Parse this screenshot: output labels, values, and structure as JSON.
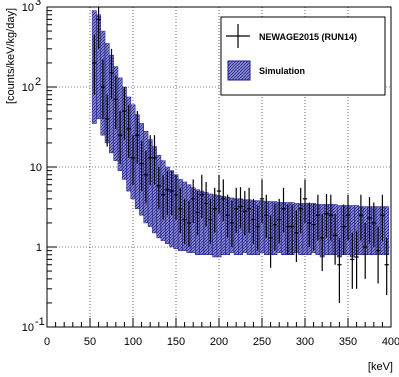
{
  "colors": {
    "band_fill": "#8080c8",
    "band_stroke": "#1a1a8c",
    "data": "#000000",
    "grid": "#000000"
  },
  "chart_data": {
    "type": "bar",
    "xlabel": "[keV]",
    "ylabel": "[counts/keV/kg/day]",
    "xlim": [
      0,
      400
    ],
    "ylim": [
      0.1,
      1000
    ],
    "yscale": "log",
    "grid": true,
    "legend_position": "top-right",
    "x_ticks": [
      0,
      50,
      100,
      150,
      200,
      250,
      300,
      350,
      400
    ],
    "x_tick_labels": [
      "0",
      "50",
      "100",
      "150",
      "200",
      "250",
      "300",
      "350",
      "400"
    ],
    "y_ticks": [
      0.1,
      1,
      10,
      100,
      1000
    ],
    "y_tick_labels": [
      {
        "base": "10",
        "exp": "-1"
      },
      {
        "base": "1",
        "exp": ""
      },
      {
        "base": "10",
        "exp": ""
      },
      {
        "base": "10",
        "exp": "2"
      },
      {
        "base": "10",
        "exp": "3"
      }
    ],
    "series": [
      {
        "name": "NEWAGE2015 (RUN14)",
        "kind": "data-errorbars",
        "bin_width": 5,
        "x": [
          55,
          60,
          65,
          70,
          75,
          80,
          85,
          90,
          95,
          100,
          105,
          110,
          115,
          120,
          125,
          130,
          135,
          140,
          145,
          150,
          155,
          160,
          165,
          170,
          175,
          180,
          185,
          190,
          195,
          200,
          205,
          210,
          215,
          220,
          225,
          230,
          235,
          240,
          245,
          250,
          255,
          260,
          265,
          270,
          275,
          280,
          285,
          290,
          295,
          300,
          305,
          310,
          315,
          320,
          325,
          330,
          335,
          340,
          345,
          350,
          355,
          360,
          365,
          370,
          375,
          380,
          385,
          390,
          395
        ],
        "y": [
          200,
          700,
          100,
          40,
          150,
          70,
          25,
          50,
          30,
          13,
          25,
          11,
          8,
          13,
          13,
          5.8,
          4.5,
          5.2,
          5,
          4.5,
          3,
          2.2,
          2,
          4,
          2.7,
          4.5,
          3.5,
          2.2,
          3,
          5,
          4,
          2.5,
          2,
          3,
          3.2,
          2.8,
          3,
          2.2,
          1.8,
          4,
          2.5,
          1.3,
          1.9,
          2.2,
          3,
          1.8,
          1.8,
          1.5,
          3,
          4,
          2,
          1.9,
          2.5,
          1.3,
          2.6,
          2.5,
          1.4,
          0.6,
          1.8,
          2.5,
          0.7,
          0.75,
          2.5,
          1,
          2.3,
          2,
          0.9,
          2.5,
          0.6
        ],
        "y_low": [
          80,
          300,
          40,
          18,
          70,
          30,
          11,
          22,
          13,
          6,
          11,
          5,
          3.5,
          6,
          6,
          3,
          2.2,
          2.5,
          2.5,
          2.2,
          1.5,
          1.1,
          1,
          2,
          1.4,
          2.3,
          1.8,
          1.1,
          1.5,
          2.6,
          2.1,
          1.3,
          1,
          1.5,
          1.7,
          1.4,
          1.5,
          1.1,
          0.9,
          2,
          1.3,
          0.55,
          0.9,
          1.1,
          1.5,
          0.8,
          0.8,
          0.65,
          1.5,
          2,
          1,
          0.9,
          1.2,
          0.5,
          1.3,
          1.2,
          0.6,
          0.2,
          0.8,
          1.2,
          0.3,
          0.3,
          1.2,
          0.4,
          1.1,
          1,
          0.35,
          1.2,
          0.25
        ],
        "y_high": [
          450,
          1000,
          220,
          80,
          300,
          140,
          50,
          100,
          60,
          25,
          50,
          21,
          16,
          25,
          25,
          10,
          8,
          9,
          9,
          8,
          5.5,
          4,
          3.8,
          7,
          5,
          8,
          6.5,
          4,
          5.5,
          8,
          7,
          4.5,
          3.8,
          5.5,
          5.6,
          5,
          5.5,
          4,
          3.3,
          7,
          4.5,
          2.5,
          3.5,
          4,
          5.5,
          3.4,
          3.4,
          2.9,
          5.5,
          7,
          3.6,
          3.5,
          4.5,
          2.6,
          4.6,
          4.5,
          2.6,
          1.3,
          3.4,
          4.5,
          1.5,
          1.6,
          4.5,
          2,
          4.2,
          3.6,
          1.8,
          4.5,
          1.3
        ]
      },
      {
        "name": "Simulation",
        "kind": "band",
        "bin_width": 5,
        "x": [
          55,
          60,
          65,
          70,
          75,
          80,
          85,
          90,
          95,
          100,
          105,
          110,
          115,
          120,
          125,
          130,
          135,
          140,
          145,
          150,
          155,
          160,
          165,
          170,
          175,
          180,
          185,
          190,
          195,
          200,
          205,
          210,
          215,
          220,
          225,
          230,
          235,
          240,
          245,
          250,
          255,
          260,
          265,
          270,
          275,
          280,
          285,
          290,
          295,
          300,
          305,
          310,
          315,
          320,
          325,
          330,
          335,
          340,
          345,
          350,
          355,
          360,
          365,
          370,
          375,
          380,
          385,
          390,
          395
        ],
        "low": [
          35,
          40,
          25,
          20,
          15,
          12,
          9,
          7,
          5,
          4,
          3,
          2.5,
          2,
          1.8,
          1.5,
          1.3,
          1.2,
          1.1,
          1,
          0.95,
          0.9,
          0.9,
          0.85,
          0.85,
          0.8,
          0.8,
          0.8,
          0.8,
          0.75,
          0.75,
          0.8,
          0.8,
          0.85,
          0.8,
          0.8,
          0.85,
          0.8,
          0.8,
          0.8,
          0.85,
          0.8,
          0.8,
          0.8,
          0.85,
          0.8,
          0.8,
          0.8,
          0.85,
          0.8,
          0.8,
          0.8,
          0.85,
          0.8,
          0.75,
          0.8,
          0.8,
          0.8,
          0.75,
          0.8,
          0.8,
          0.75,
          0.8,
          0.8,
          0.8,
          0.8,
          0.8,
          0.8,
          0.8,
          0.8
        ],
        "high": [
          900,
          800,
          500,
          350,
          250,
          180,
          130,
          100,
          75,
          60,
          45,
          35,
          28,
          22,
          18,
          14,
          12,
          10,
          9,
          8,
          7,
          6.5,
          6,
          5.5,
          5.2,
          5,
          4.8,
          4.6,
          4.5,
          4.4,
          4.3,
          4.2,
          4.1,
          4,
          4,
          3.9,
          3.9,
          3.8,
          3.8,
          3.8,
          3.7,
          3.7,
          3.7,
          3.6,
          3.6,
          3.6,
          3.6,
          3.5,
          3.5,
          3.5,
          3.5,
          3.5,
          3.4,
          3.4,
          3.4,
          3.4,
          3.4,
          3.3,
          3.3,
          3.3,
          3.3,
          3.3,
          3.2,
          3.2,
          3.2,
          3.2,
          3.2,
          3.2,
          3.2
        ]
      }
    ]
  }
}
